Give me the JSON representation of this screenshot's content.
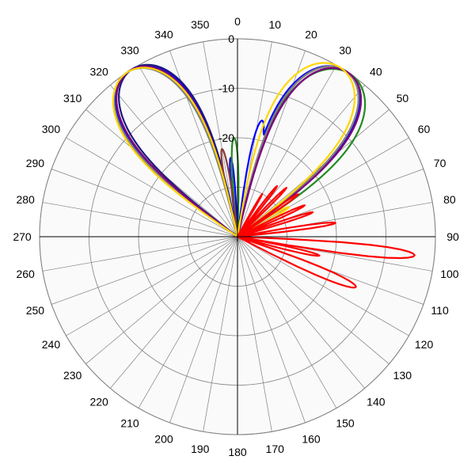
{
  "chart_data": {
    "type": "polar-line",
    "angle_unit": "degrees",
    "angle_zero": "top",
    "angle_direction": "clockwise",
    "angle_ticks": [
      "0",
      "10",
      "20",
      "30",
      "40",
      "50",
      "60",
      "70",
      "80",
      "90",
      "100",
      "110",
      "120",
      "130",
      "140",
      "150",
      "160",
      "170",
      "180",
      "190",
      "200",
      "210",
      "220",
      "230",
      "240",
      "250",
      "260",
      "270",
      "280",
      "290",
      "300",
      "310",
      "320",
      "330",
      "340",
      "350"
    ],
    "radial_ticks": [
      "0",
      "-10",
      "-20"
    ],
    "rlim": [
      -40,
      0
    ],
    "grid": true,
    "colors": {
      "background": "#ffffff",
      "plot_bg": "#fafafa",
      "grid": "#808080",
      "axis": "#000000"
    },
    "series": [
      {
        "color": "#0000ff",
        "lobes": [
          {
            "center": -33,
            "width": 46,
            "peak": 0
          },
          {
            "center": 33,
            "width": 46,
            "peak": 0
          },
          {
            "center": 12,
            "width": 12,
            "peak": -16
          },
          {
            "center": -5,
            "width": 8,
            "peak": -24
          }
        ]
      },
      {
        "color": "#1a1a80",
        "lobes": [
          {
            "center": -32,
            "width": 44,
            "peak": 0
          },
          {
            "center": 34,
            "width": 44,
            "peak": 0
          },
          {
            "center": 20,
            "width": 12,
            "peak": -22
          }
        ]
      },
      {
        "color": "#228b22",
        "lobes": [
          {
            "center": -34,
            "width": 44,
            "peak": 0
          },
          {
            "center": 35,
            "width": 48,
            "peak": 0
          },
          {
            "center": -2,
            "width": 10,
            "peak": -20
          },
          {
            "center": 22,
            "width": 10,
            "peak": -24
          },
          {
            "center": -40,
            "width": 12,
            "peak": -29
          }
        ]
      },
      {
        "color": "#8b3a3a",
        "lobes": [
          {
            "center": -33,
            "width": 44,
            "peak": 0
          },
          {
            "center": 33,
            "width": 44,
            "peak": 0
          },
          {
            "center": -10,
            "width": 10,
            "peak": -22
          },
          {
            "center": 25,
            "width": 10,
            "peak": -26
          },
          {
            "center": -28,
            "width": 10,
            "peak": -26
          }
        ]
      },
      {
        "color": "#808080",
        "lobes": [
          {
            "center": -34,
            "width": 44,
            "peak": 0
          },
          {
            "center": 33,
            "width": 44,
            "peak": 0
          },
          {
            "center": 27,
            "width": 12,
            "peak": -20
          },
          {
            "center": -18,
            "width": 12,
            "peak": -27
          },
          {
            "center": 40,
            "width": 8,
            "peak": -28
          }
        ]
      },
      {
        "color": "#800080",
        "lobes": [
          {
            "center": -33,
            "width": 44,
            "peak": 0
          },
          {
            "center": 34,
            "width": 44,
            "peak": 0
          },
          {
            "center": 30,
            "width": 10,
            "peak": -24
          },
          {
            "center": 45,
            "width": 10,
            "peak": -26
          }
        ]
      },
      {
        "color": "#ffd700",
        "lobes": [
          {
            "center": -34,
            "width": 46,
            "peak": 0
          },
          {
            "center": 31,
            "width": 46,
            "peak": 0
          },
          {
            "center": 35,
            "width": 10,
            "peak": -20
          },
          {
            "center": 60,
            "width": 10,
            "peak": -28
          }
        ]
      },
      {
        "color": "#ff0000",
        "lobes": [
          {
            "center": 96,
            "width": 8,
            "peak": -4
          },
          {
            "center": 113,
            "width": 10,
            "peak": -14
          },
          {
            "center": 103,
            "width": 7,
            "peak": -23
          },
          {
            "center": 82,
            "width": 6,
            "peak": -20
          },
          {
            "center": 72,
            "width": 6,
            "peak": -24
          },
          {
            "center": 65,
            "width": 6,
            "peak": -25
          },
          {
            "center": 55,
            "width": 6,
            "peak": -25
          },
          {
            "center": 45,
            "width": 6,
            "peak": -26
          },
          {
            "center": 38,
            "width": 6,
            "peak": -27
          },
          {
            "center": 30,
            "width": 5,
            "peak": -30
          }
        ]
      }
    ]
  }
}
